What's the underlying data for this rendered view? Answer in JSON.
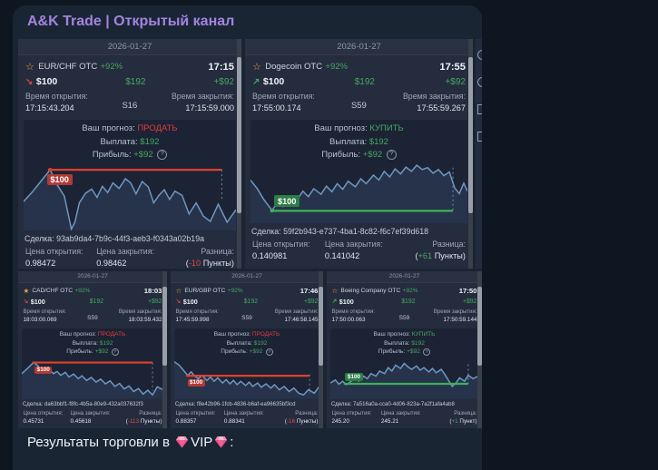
{
  "chat": {
    "channel_name": "A&K Trade | Открытый канал"
  },
  "caption": {
    "prefix": "Результаты торговли в ",
    "vip": "VIP",
    "suffix": ":"
  },
  "labels": {
    "forecast": "Ваш прогноз:",
    "payout": "Выплата:",
    "profit": "Прибыль:",
    "open_time": "Время открытия:",
    "close_time": "Время закрытия:",
    "deal": "Сделка:",
    "open_price": "Цена открытия:",
    "close_price": "Цена закрытия:",
    "difference": "Разница:"
  },
  "icons": {
    "star_outline": "☆",
    "star_filled": "★",
    "arrow_up": "↗",
    "arrow_down": "↘",
    "help": "?"
  },
  "colors": {
    "accent_purple": "#a284e0",
    "green": "#46a763",
    "red": "#e23c3c",
    "chart_line": "#7097c2",
    "sell_line": "#e0402e",
    "buy_line": "#3cb257"
  },
  "cards": [
    {
      "date": "2026-01-27",
      "asset": "EUR/CHF OTC",
      "percent": "+92%",
      "time": "17:15",
      "trend": "down",
      "star": "outline",
      "stake": "$100",
      "payout": "$192",
      "profit": "+$92",
      "open_time": "17:15:43.204",
      "duration": "S16",
      "close_time": "17:15:59.000",
      "forecast": "ПРОДАТЬ",
      "badge": "$100",
      "deal_id": "93ab9da4-7b9c-44f3-aeb3-f0343a02b19a",
      "open_price": "0.98472",
      "close_price": "0.98462",
      "diff_prefix": "(",
      "diff_value": "-10",
      "diff_suffix": " Пункты)",
      "diff_sign": "neg"
    },
    {
      "date": "2026-01-27",
      "asset": "Dogecoin OTC",
      "percent": "+92%",
      "time": "17:55",
      "trend": "up",
      "star": "outline",
      "stake": "$100",
      "payout": "$192",
      "profit": "+$92",
      "open_time": "17:55:00.174",
      "duration": "S59",
      "close_time": "17:55:59.267",
      "forecast": "КУПИТЬ",
      "badge": "$100",
      "deal_id": "59f2b943-e737-4ba1-8c82-f6c7ef39d618",
      "open_price": "0.140981",
      "close_price": "0.141042",
      "diff_prefix": "(",
      "diff_value": "+61",
      "diff_suffix": " Пункты)",
      "diff_sign": "pos"
    },
    {
      "date": "2026-01-27",
      "asset": "CAD/CHF OTC",
      "percent": "+92%",
      "time": "18:03",
      "trend": "down",
      "star": "filled",
      "stake": "$100",
      "payout": "$192",
      "profit": "+$92",
      "open_time": "18:03:00.069",
      "duration": "S59",
      "close_time": "18:03:59.432",
      "forecast": "ПРОДАТЬ",
      "badge": "$100",
      "deal_id": "da63bbf1-f8fc-4b5a-80e9-432a037632f3",
      "open_price": "0.45731",
      "close_price": "0.45618",
      "diff_prefix": "(",
      "diff_value": "-113",
      "diff_suffix": " Пункты)",
      "diff_sign": "neg"
    },
    {
      "date": "2026-01-27",
      "asset": "EUR/GBP OTC",
      "percent": "+92%",
      "time": "17:46",
      "trend": "down",
      "star": "outline",
      "stake": "$100",
      "payout": "$192",
      "profit": "+$92",
      "open_time": "17:45:59.998",
      "duration": "S59",
      "close_time": "17:46:58.145",
      "forecast": "ПРОДАТЬ",
      "badge": "$100",
      "deal_id": "f8e42b96-1fcb-4836-b6af-ea96635bf3cd",
      "open_price": "0.88357",
      "close_price": "0.88341",
      "diff_prefix": "(",
      "diff_value": "-16",
      "diff_suffix": " Пункты)",
      "diff_sign": "neg"
    },
    {
      "date": "2026-01-27",
      "asset": "Boeing Company OTC",
      "percent": "+92%",
      "time": "17:50",
      "trend": "up",
      "star": "outline",
      "stake": "$100",
      "payout": "$192",
      "profit": "+$92",
      "open_time": "17:50:00.063",
      "duration": "S59",
      "close_time": "17:50:59.144",
      "forecast": "КУПИТЬ",
      "badge": "$100",
      "deal_id": "7a516a0a-cca0-4d06-823a-7a2f1afa4ab8",
      "open_price": "245.20",
      "close_price": "245.21",
      "diff_prefix": "(",
      "diff_value": "+1",
      "diff_suffix": " Пункт)",
      "diff_sign": "pos"
    }
  ],
  "sidebar_sliver_icons": [
    "person-icon",
    "target-icon",
    "hourglass-icon",
    "checkbox-icon"
  ]
}
